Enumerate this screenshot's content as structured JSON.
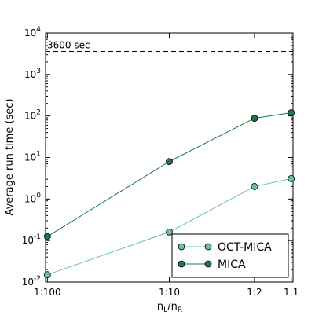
{
  "chart_data": {
    "type": "line",
    "xlabel_main": "n",
    "xlabel_sub1": "L",
    "xlabel_sep": "/n",
    "xlabel_sub2": "R",
    "ylabel": "Average run time (sec)",
    "yscale": "log",
    "ylim": [
      0.01,
      10000
    ],
    "x_positions": [
      0.01,
      0.1,
      0.5,
      1.0
    ],
    "x_tick_labels": [
      "1:100",
      "1:10",
      "1:2",
      "1:1"
    ],
    "y_ticks": [
      {
        "base": "10",
        "exp": "-2",
        "value": 0.01
      },
      {
        "base": "10",
        "exp": "-1",
        "value": 0.1
      },
      {
        "base": "10",
        "exp": "0",
        "value": 1
      },
      {
        "base": "10",
        "exp": "1",
        "value": 10
      },
      {
        "base": "10",
        "exp": "2",
        "value": 100
      },
      {
        "base": "10",
        "exp": "3",
        "value": 1000
      },
      {
        "base": "10",
        "exp": "4",
        "value": 10000
      }
    ],
    "series": [
      {
        "name": "OCT-MICA",
        "color": "#66c2a4",
        "values": [
          0.015,
          0.16,
          2.0,
          3.1
        ]
      },
      {
        "name": "MICA",
        "color": "#1b7a43",
        "values": [
          0.125,
          8.0,
          88,
          120
        ]
      }
    ],
    "reference_line": {
      "value": 3600,
      "label": "3600 sec",
      "style": "dashed"
    },
    "legend_position": "lower-right",
    "grid": false
  }
}
